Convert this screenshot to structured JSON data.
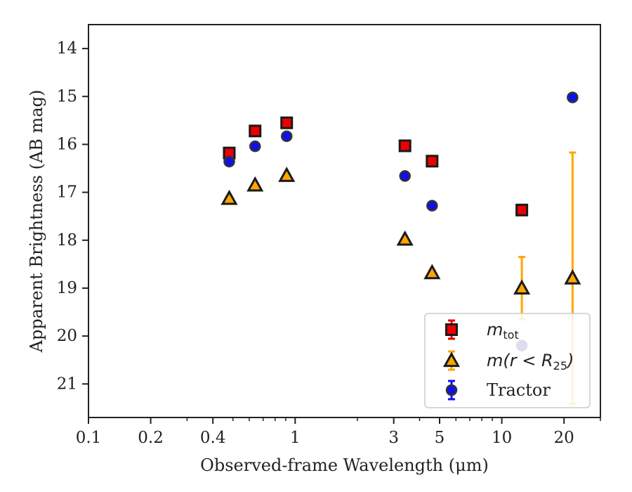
{
  "chart_data": {
    "type": "scatter",
    "title": "",
    "xlabel": "Observed-frame Wavelength (μm)",
    "ylabel": "Apparent Brightness (AB mag)",
    "xscale": "log",
    "xlim": [
      0.1,
      30
    ],
    "ylim": [
      21.7,
      13.5
    ],
    "y_inverted": true,
    "grid": false,
    "legend_position": "lower-right",
    "x_ticks": [
      0.1,
      0.2,
      0.4,
      1,
      3,
      5,
      10,
      20
    ],
    "x_tick_labels": [
      "0.1",
      "0.2",
      "0.4",
      "1",
      "3",
      "5",
      "10",
      "20"
    ],
    "y_ticks": [
      14,
      15,
      16,
      17,
      18,
      19,
      20,
      21
    ],
    "y_tick_labels": [
      "14",
      "15",
      "16",
      "17",
      "18",
      "19",
      "20",
      "21"
    ],
    "series": [
      {
        "name": "m_tot",
        "legend_main": "m",
        "legend_sub": "tot",
        "marker": "square",
        "color": "#ee0000",
        "errcolor": "#ee0000",
        "points": [
          {
            "x": 0.48,
            "y": 16.18,
            "err": 0.03
          },
          {
            "x": 0.64,
            "y": 15.72,
            "err": 0.03
          },
          {
            "x": 0.91,
            "y": 15.55,
            "err": 0.03
          },
          {
            "x": 3.4,
            "y": 16.03,
            "err": 0.03
          },
          {
            "x": 4.6,
            "y": 16.35,
            "err": 0.03
          },
          {
            "x": 12.5,
            "y": 17.37,
            "err": 0.03
          }
        ]
      },
      {
        "name": "m(r < R_25)",
        "legend_main": "m(r < R",
        "legend_sub": "25",
        "legend_tail": ")",
        "marker": "triangle",
        "color": "#ffa500",
        "errcolor": "#ffa500",
        "points": [
          {
            "x": 0.48,
            "y": 17.13,
            "err": 0.03
          },
          {
            "x": 0.64,
            "y": 16.85,
            "err": 0.03
          },
          {
            "x": 0.91,
            "y": 16.65,
            "err": 0.03
          },
          {
            "x": 3.4,
            "y": 17.98,
            "err": 0.03
          },
          {
            "x": 4.6,
            "y": 18.68,
            "err": 0.05
          },
          {
            "x": 12.5,
            "y": 19.0,
            "err": 0.65
          },
          {
            "x": 22.0,
            "y": 18.79,
            "err": 2.62
          }
        ]
      },
      {
        "name": "Tractor",
        "legend_main": "Tractor",
        "marker": "circle",
        "color": "#1010ee",
        "errcolor": "#1010ee",
        "points": [
          {
            "x": 0.48,
            "y": 16.36,
            "err": 0.03
          },
          {
            "x": 0.64,
            "y": 16.04,
            "err": 0.03
          },
          {
            "x": 0.91,
            "y": 15.83,
            "err": 0.03
          },
          {
            "x": 3.4,
            "y": 16.66,
            "err": 0.03
          },
          {
            "x": 4.6,
            "y": 17.28,
            "err": 0.04
          },
          {
            "x": 12.5,
            "y": 20.2,
            "err": 0.05
          },
          {
            "x": 22.0,
            "y": 15.02,
            "err": 0.04
          }
        ]
      }
    ]
  }
}
